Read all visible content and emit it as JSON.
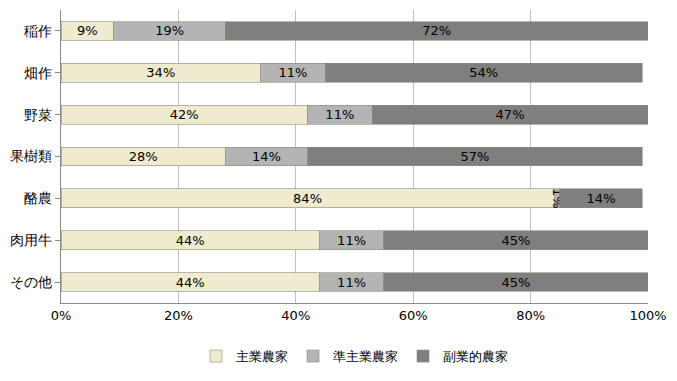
{
  "chart_data": {
    "type": "bar",
    "orientation": "horizontal",
    "stacked": true,
    "data_labels": true,
    "grid": true,
    "legend": "bottom",
    "categories": [
      "稲作",
      "畑作",
      "野菜",
      "果樹類",
      "酪農",
      "肉用牛",
      "その他"
    ],
    "series": [
      {
        "name": "主業農家",
        "color": "#eeebcf",
        "values": [
          9,
          34,
          42,
          28,
          84,
          44,
          44
        ],
        "value_labels": [
          "9%",
          "34%",
          "42%",
          "28%",
          "84%",
          "44%",
          "44%"
        ]
      },
      {
        "name": "準主業農家",
        "color": "#b4b4b4",
        "values": [
          19,
          11,
          11,
          14,
          1,
          11,
          11
        ],
        "value_labels": [
          "19%",
          "11%",
          "11%",
          "14%",
          "1%",
          "11%",
          "11%"
        ]
      },
      {
        "name": "副業的農家",
        "color": "#7f7f7f",
        "values": [
          72,
          54,
          47,
          57,
          14,
          45,
          45
        ],
        "value_labels": [
          "72%",
          "54%",
          "47%",
          "57%",
          "14%",
          "45%",
          "45%"
        ]
      }
    ],
    "xlim": [
      0,
      100
    ],
    "xticks": [
      {
        "value": 0,
        "label": "0%"
      },
      {
        "value": 20,
        "label": "20%"
      },
      {
        "value": 40,
        "label": "40%"
      },
      {
        "value": 60,
        "label": "60%"
      },
      {
        "value": 80,
        "label": "80%"
      },
      {
        "value": 100,
        "label": "100%"
      }
    ]
  }
}
